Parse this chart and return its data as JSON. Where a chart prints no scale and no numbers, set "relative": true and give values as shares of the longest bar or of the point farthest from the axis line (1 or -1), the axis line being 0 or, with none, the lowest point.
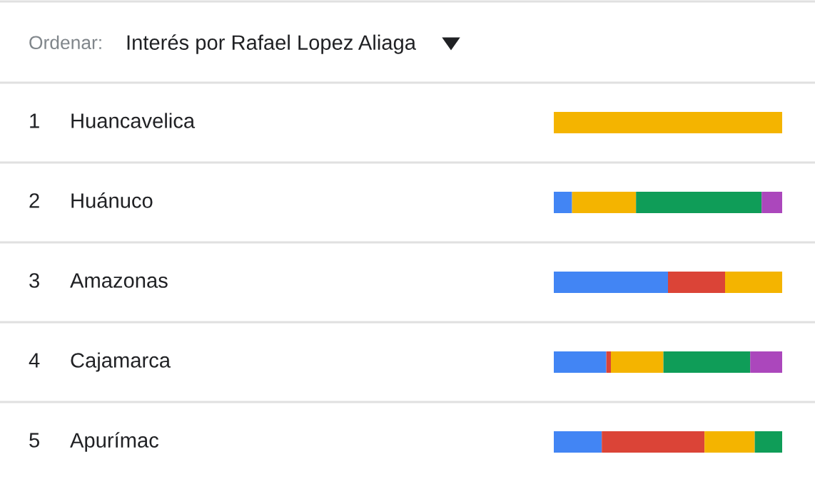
{
  "chart_data": {
    "type": "bar",
    "orientation": "horizontal",
    "stacked": true,
    "relative": true,
    "title": "Ordenar:",
    "subtitle": "Interés por Rafael Lopez Aliaga",
    "categories": [
      "Huancavelica",
      "Huánuco",
      "Amazonas",
      "Cajamarca",
      "Apurímac"
    ],
    "annotations": [
      "1",
      "2",
      "3",
      "4",
      "5"
    ],
    "series": [
      {
        "color": "#4285f4",
        "values": [
          null,
          0.08,
          0.5,
          0.23,
          0.21
        ]
      },
      {
        "color": "#db4437",
        "values": [
          null,
          null,
          0.25,
          0.02,
          0.45
        ]
      },
      {
        "color": "#f4b400",
        "values": [
          1,
          0.28,
          0.25,
          0.23,
          0.22
        ]
      },
      {
        "color": "#0f9d58",
        "values": [
          null,
          0.55,
          null,
          0.38,
          0.12
        ]
      },
      {
        "color": "#ab47bc",
        "values": [
          null,
          0.09,
          null,
          0.14,
          null
        ]
      }
    ]
  }
}
